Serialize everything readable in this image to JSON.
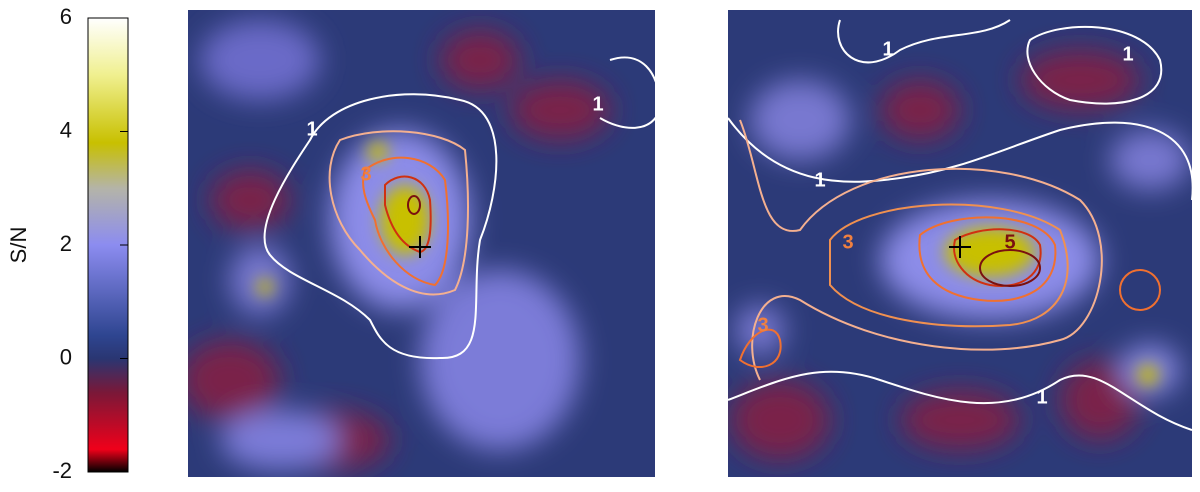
{
  "colorbar": {
    "label": "S/N",
    "lim": [
      -2,
      6
    ],
    "ticks": [
      -2,
      0,
      2,
      4,
      6
    ],
    "stops": [
      {
        "value": -2,
        "color": "#000000"
      },
      {
        "value": -1.6,
        "color": "#f0001a"
      },
      {
        "value": -0.6,
        "color": "#7a1838"
      },
      {
        "value": 0,
        "color": "#2a3672"
      },
      {
        "value": 0.4,
        "color": "#2e4590"
      },
      {
        "value": 2,
        "color": "#8c8cf0"
      },
      {
        "value": 3,
        "color": "#b4b4a8"
      },
      {
        "value": 3.8,
        "color": "#c8c000"
      },
      {
        "value": 5,
        "color": "#f0f090"
      },
      {
        "value": 6,
        "color": "#ffffff"
      }
    ]
  },
  "panels": [
    {
      "contour_labels": [
        "1",
        "3",
        "1"
      ]
    },
    {
      "contour_labels": [
        "1",
        "1",
        "1",
        "3",
        "5",
        "3",
        "1"
      ]
    }
  ]
}
